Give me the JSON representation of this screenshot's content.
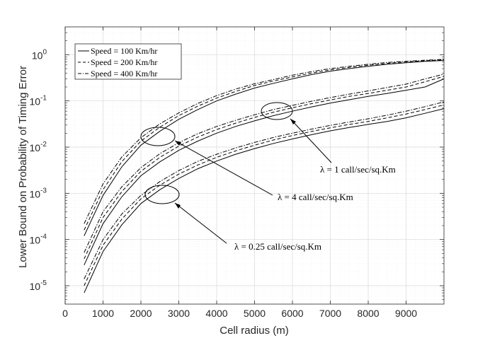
{
  "chart_data": {
    "type": "line",
    "title": "",
    "xlabel": "Cell radius (m)",
    "ylabel": "Lower Bound on Probability of Timing Error",
    "xlim": [
      0,
      10000
    ],
    "ylim": [
      4e-06,
      4
    ],
    "yscale": "log",
    "grid": true,
    "legend_position": "top-left",
    "x_ticks": [
      "0",
      "1000",
      "2000",
      "3000",
      "4000",
      "5000",
      "6000",
      "7000",
      "8000",
      "9000"
    ],
    "y_ticks": [
      {
        "base": "10",
        "exp": "0"
      },
      {
        "base": "10",
        "exp": "-1"
      },
      {
        "base": "10",
        "exp": "-2"
      },
      {
        "base": "10",
        "exp": "-3"
      },
      {
        "base": "10",
        "exp": "-4"
      },
      {
        "base": "10",
        "exp": "-5"
      }
    ],
    "legend": [
      {
        "label": "Speed = 100 Km/hr",
        "style": "solid"
      },
      {
        "label": "Speed = 200 Km/hr",
        "style": "dashed"
      },
      {
        "label": "Speed = 400 Km/hr",
        "style": "dashdot"
      }
    ],
    "x": [
      500,
      1000,
      1500,
      2000,
      2500,
      3000,
      3500,
      4000,
      4500,
      5000,
      5500,
      6000,
      6500,
      7000,
      7500,
      8000,
      8500,
      9000,
      9500,
      10000
    ],
    "groups": [
      {
        "lambda": "4 call/sec/sq.Km",
        "series": [
          {
            "style": "solid",
            "values": [
              0.00012,
              0.0009,
              0.0038,
              0.011,
              0.022,
              0.04,
              0.065,
              0.1,
              0.14,
              0.19,
              0.24,
              0.3,
              0.37,
              0.44,
              0.5,
              0.56,
              0.62,
              0.67,
              0.72,
              0.75
            ]
          },
          {
            "style": "dashed",
            "values": [
              0.00016,
              0.0012,
              0.0049,
              0.0135,
              0.027,
              0.048,
              0.077,
              0.115,
              0.16,
              0.215,
              0.27,
              0.33,
              0.4,
              0.47,
              0.53,
              0.59,
              0.65,
              0.7,
              0.74,
              0.77
            ]
          },
          {
            "style": "dashdot",
            "values": [
              0.00022,
              0.0016,
              0.0062,
              0.016,
              0.032,
              0.055,
              0.088,
              0.13,
              0.18,
              0.235,
              0.29,
              0.36,
              0.43,
              0.5,
              0.56,
              0.62,
              0.68,
              0.72,
              0.76,
              0.79
            ]
          }
        ]
      },
      {
        "lambda": "1 call/sec/sq.Km",
        "series": [
          {
            "style": "solid",
            "values": [
              2.8e-05,
              0.00022,
              0.00085,
              0.0024,
              0.0048,
              0.0085,
              0.0135,
              0.02,
              0.028,
              0.037,
              0.048,
              0.06,
              0.074,
              0.09,
              0.106,
              0.125,
              0.145,
              0.17,
              0.2,
              0.3
            ]
          },
          {
            "style": "dashed",
            "values": [
              3.8e-05,
              0.0003,
              0.0011,
              0.003,
              0.006,
              0.0105,
              0.0165,
              0.024,
              0.033,
              0.044,
              0.057,
              0.071,
              0.087,
              0.105,
              0.125,
              0.145,
              0.17,
              0.2,
              0.26,
              0.34
            ]
          },
          {
            "style": "dashdot",
            "values": [
              5.2e-05,
              0.0004,
              0.0014,
              0.0036,
              0.0072,
              0.0125,
              0.0195,
              0.028,
              0.038,
              0.05,
              0.065,
              0.08,
              0.098,
              0.118,
              0.14,
              0.165,
              0.195,
              0.23,
              0.3,
              0.38
            ]
          }
        ]
      },
      {
        "lambda": "0.25 call/sec/sq.Km",
        "series": [
          {
            "style": "solid",
            "values": [
              7e-06,
              5.5e-05,
              0.00021,
              0.0006,
              0.0012,
              0.0021,
              0.0034,
              0.005,
              0.007,
              0.0093,
              0.012,
              0.015,
              0.0185,
              0.0225,
              0.0265,
              0.031,
              0.036,
              0.043,
              0.054,
              0.068
            ]
          },
          {
            "style": "dashed",
            "values": [
              1e-05,
              7.5e-05,
              0.00028,
              0.00076,
              0.0015,
              0.0026,
              0.0041,
              0.006,
              0.0083,
              0.011,
              0.0143,
              0.0178,
              0.0218,
              0.0262,
              0.031,
              0.036,
              0.043,
              0.052,
              0.065,
              0.082
            ]
          },
          {
            "style": "dashdot",
            "values": [
              1.4e-05,
              0.0001,
              0.00036,
              0.0009,
              0.0018,
              0.0031,
              0.0049,
              0.007,
              0.0096,
              0.0126,
              0.0162,
              0.02,
              0.0245,
              0.0295,
              0.035,
              0.041,
              0.049,
              0.06,
              0.075,
              0.095
            ]
          }
        ]
      }
    ],
    "annotations": [
      {
        "text": "λ = 4 call/sec/sq.Km",
        "group": 0
      },
      {
        "text": "λ = 1 call/sec/sq.Km",
        "group": 1
      },
      {
        "text": "λ = 0.25 call/sec/sq.Km",
        "group": 2
      }
    ]
  }
}
